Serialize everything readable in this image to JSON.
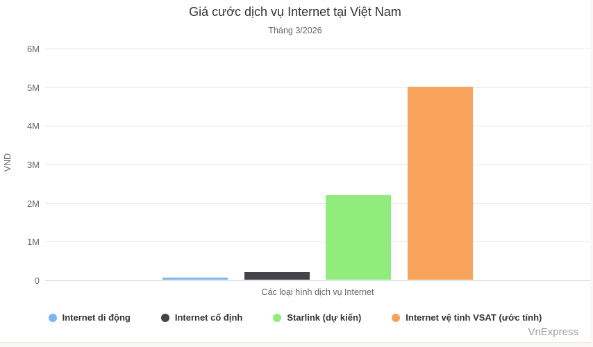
{
  "chart_data": {
    "type": "bar",
    "title": "Giá cước dịch vụ Internet tại Việt Nam",
    "subtitle": "Tháng 3/2026",
    "xlabel": "Các loại hình dịch vụ Internet",
    "ylabel": "VND",
    "ylim": [
      0,
      6000000
    ],
    "ytick_interval": 1000000,
    "yticks": [
      {
        "value": 0,
        "label": "0"
      },
      {
        "value": 1000000,
        "label": "1M"
      },
      {
        "value": 2000000,
        "label": "2M"
      },
      {
        "value": 3000000,
        "label": "3M"
      },
      {
        "value": 4000000,
        "label": "4M"
      },
      {
        "value": 5000000,
        "label": "5M"
      },
      {
        "value": 6000000,
        "label": "6M"
      }
    ],
    "grid": true,
    "legend_position": "bottom",
    "series": [
      {
        "name": "Internet di động",
        "value": 50000,
        "color": "#7cb5ec"
      },
      {
        "name": "Internet cố định",
        "value": 200000,
        "color": "#434348"
      },
      {
        "name": "Starlink (dự kiến)",
        "value": 2200000,
        "color": "#90ed7d"
      },
      {
        "name": "Internet vệ tinh VSAT (ước tính)",
        "value": 5000000,
        "color": "#f7a35c"
      }
    ]
  },
  "branding": {
    "watermark": "VnExpress"
  },
  "colors": {
    "page_bg": "#faf8f4",
    "chart_bg": "#ffffff",
    "grid": "#e6e6e6",
    "axis_line": "#ccd6eb",
    "title_text": "#333333",
    "muted_text": "#666666",
    "watermark_text": "#9e9e9e"
  }
}
